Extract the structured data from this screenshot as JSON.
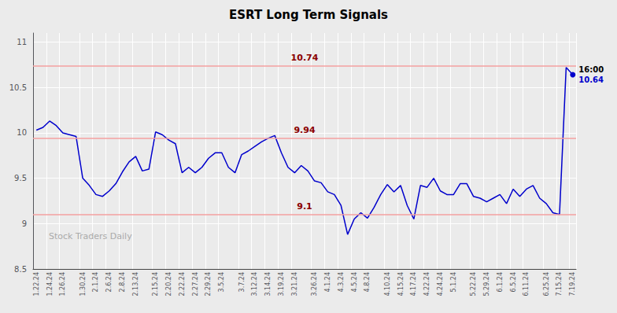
{
  "chart_data": {
    "type": "line",
    "title": "ESRT Long Term Signals",
    "watermark": "Stock Traders Daily",
    "categories": [
      "1.22.24",
      null,
      "1.24.24",
      null,
      "1.26.24",
      null,
      null,
      "1.30.24",
      null,
      "2.1.24",
      null,
      "2.6.24",
      null,
      "2.8.24",
      null,
      "2.13.24",
      null,
      null,
      "2.15.24",
      null,
      "2.20.24",
      null,
      "2.22.24",
      null,
      "2.27.24",
      null,
      "2.29.24",
      null,
      "3.5.24",
      null,
      null,
      "3.7.24",
      null,
      "3.12.24",
      null,
      "3.14.24",
      null,
      "3.19.24",
      null,
      "3.21.24",
      null,
      null,
      "3.26.24",
      null,
      "4.1.24",
      null,
      "4.3.24",
      null,
      "4.5.24",
      null,
      "4.8.24",
      null,
      null,
      "4.10.24",
      null,
      "4.15.24",
      null,
      "4.17.24",
      null,
      "4.22.24",
      null,
      "4.24.24",
      null,
      "5.1.24",
      null,
      null,
      "5.22.24",
      null,
      "5.29.24",
      null,
      "6.1.24",
      null,
      "6.5.24",
      null,
      "6.11.24",
      null,
      null,
      "6.25.24",
      null,
      "7.15.24",
      null,
      "7.19.24"
    ],
    "values": [
      10.03,
      10.06,
      10.13,
      10.08,
      10.0,
      9.98,
      9.96,
      9.5,
      9.42,
      9.32,
      9.3,
      9.36,
      9.44,
      9.57,
      9.68,
      9.74,
      9.58,
      9.6,
      10.01,
      9.98,
      9.92,
      9.88,
      9.56,
      9.62,
      9.56,
      9.62,
      9.72,
      9.78,
      9.78,
      9.62,
      9.56,
      9.76,
      9.8,
      9.85,
      9.9,
      9.94,
      9.97,
      9.78,
      9.62,
      9.56,
      9.64,
      9.58,
      9.47,
      9.45,
      9.35,
      9.32,
      9.2,
      8.88,
      9.05,
      9.12,
      9.06,
      9.18,
      9.32,
      9.43,
      9.35,
      9.42,
      9.2,
      9.05,
      9.42,
      9.4,
      9.5,
      9.36,
      9.32,
      9.32,
      9.44,
      9.44,
      9.3,
      9.28,
      9.24,
      9.28,
      9.32,
      9.22,
      9.38,
      9.3,
      9.38,
      9.42,
      9.28,
      9.22,
      9.12,
      9.1,
      10.72,
      10.64
    ],
    "color": "#0000cc",
    "hlines": [
      {
        "y": 10.74,
        "label": "10.74"
      },
      {
        "y": 9.94,
        "label": "9.94"
      },
      {
        "y": 9.1,
        "label": "9.1"
      }
    ],
    "hline_color": "#f4a0a0",
    "hline_label_color": "#8b0000",
    "end_labels": [
      "16:00",
      "10.64"
    ],
    "background_color": "#ebebeb",
    "grid_color": "#ffffff",
    "ylim": [
      8.5,
      11.1
    ],
    "yticks": [
      8.5,
      9,
      9.5,
      10,
      10.5,
      11
    ],
    "grid": true
  }
}
